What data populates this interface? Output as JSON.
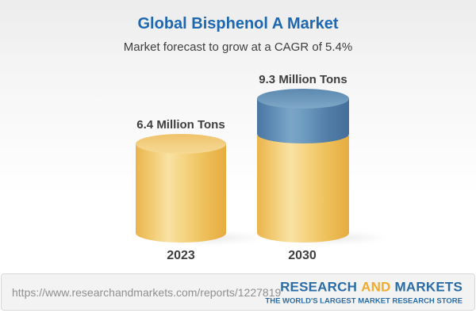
{
  "header": {
    "title": "Global Bisphenol A Market",
    "subtitle": "Market forecast to grow at a CAGR of 5.4%"
  },
  "chart_data": {
    "type": "bar",
    "style": "3d-cylinder",
    "categories": [
      "2023",
      "2030"
    ],
    "values": [
      6.4,
      9.3
    ],
    "value_labels": [
      "6.4 Million Tons",
      "9.3 Million Tons"
    ],
    "unit": "Million Tons",
    "cagr_pct": 5.4,
    "ylim": [
      0,
      10
    ],
    "grid": false,
    "legend": "none",
    "bar_colors": {
      "base_segment": "#f0c86b",
      "forecast_segment": "#5d8cb3"
    }
  },
  "footer": {
    "url": "https://www.researchandmarkets.com/reports/1227819",
    "logo": {
      "word1": "RESEARCH",
      "word2": "AND",
      "word3": "MARKETS",
      "tagline": "THE WORLD'S LARGEST MARKET RESEARCH STORE"
    }
  },
  "colors": {
    "title_blue": "#1d68b0",
    "text_dark": "#3e3e3e",
    "logo_blue": "#2a6ca5",
    "logo_gold": "#f0ab2e",
    "url_gray": "#8f8f8f",
    "footer_bg": "#f3f3f3",
    "footer_border": "#d9d9d9"
  }
}
